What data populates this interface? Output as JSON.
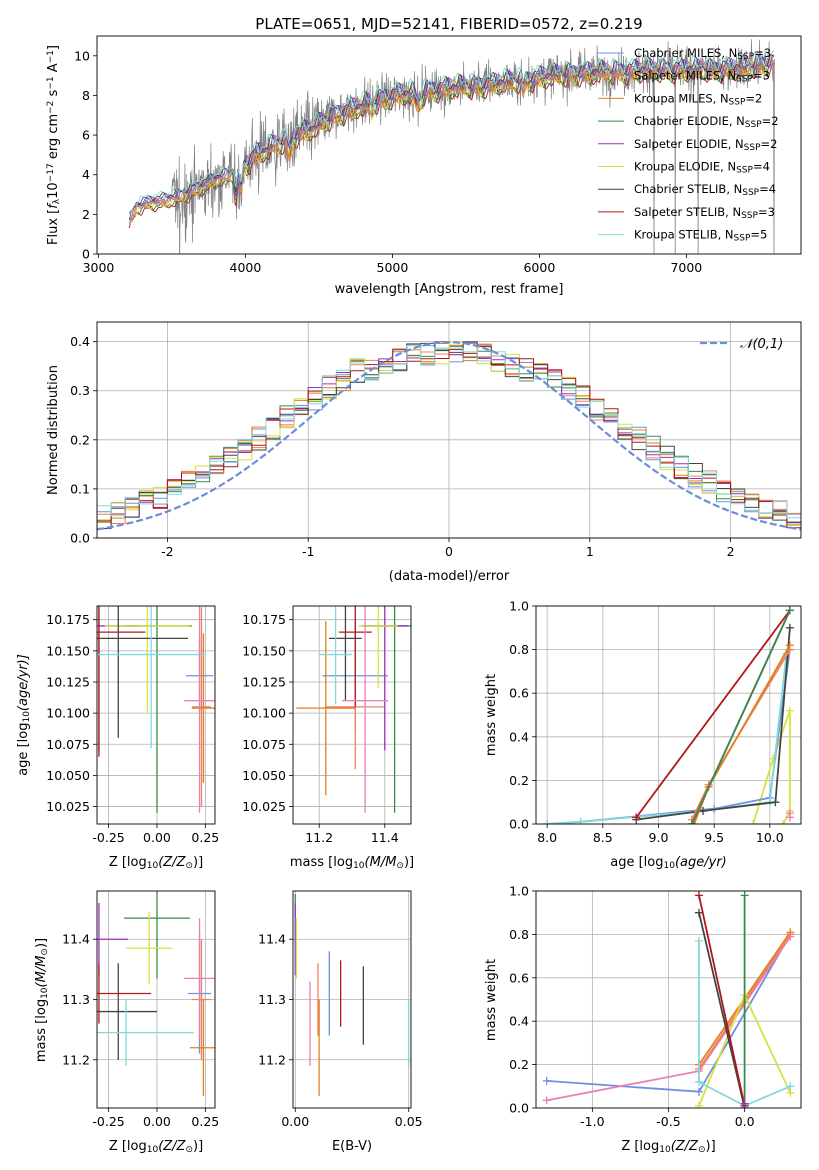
{
  "figure_title": "PLATE=0651, MJD=52141, FIBERID=0572, z=0.219",
  "colors": {
    "Chabrier MILES": "#6f8fe0",
    "Salpeter MILES": "#f08060",
    "Kroupa MILES": "#e0801a",
    "Chabrier ELODIE": "#3a8a4a",
    "Salpeter ELODIE": "#9a30c0",
    "Kroupa ELODIE": "#d8e040",
    "Chabrier STELIB": "#444444",
    "Salpeter STELIB": "#b01818",
    "Kroupa STELIB": "#80dada",
    "pink": "#e880b8",
    "data": "#808080",
    "normal": "#6a8ed8"
  },
  "chart_data": [
    {
      "id": "spectrum",
      "type": "line",
      "title": "PLATE=0651, MJD=52141, FIBERID=0572, z=0.219",
      "xlabel": "wavelength [Angstrom, rest frame]",
      "ylabel_parts": [
        "Flux [",
        "f",
        "λ",
        "10",
        "−17",
        " erg cm",
        "−2",
        " s",
        "−1",
        " A",
        "−1",
        "]"
      ],
      "xlim": [
        2990,
        7780
      ],
      "ylim": [
        0,
        11
      ],
      "xticks": [
        3000,
        4000,
        5000,
        6000,
        7000
      ],
      "yticks": [
        0,
        2,
        4,
        6,
        8,
        10
      ],
      "legend_position": "right",
      "legend": [
        {
          "label": "Chabrier MILES, N",
          "sub": "SSP",
          "n": "=3"
        },
        {
          "label": "Salpeter MILES, N",
          "sub": "SSP",
          "n": "=3"
        },
        {
          "label": "Kroupa MILES, N",
          "sub": "SSP",
          "n": "=2"
        },
        {
          "label": "Chabrier ELODIE, N",
          "sub": "SSP",
          "n": "=2"
        },
        {
          "label": "Salpeter ELODIE, N",
          "sub": "SSP",
          "n": "=2"
        },
        {
          "label": "Kroupa ELODIE, N",
          "sub": "SSP",
          "n": "=4"
        },
        {
          "label": "Chabrier STELIB, N",
          "sub": "SSP",
          "n": "=4"
        },
        {
          "label": "Salpeter STELIB, N",
          "sub": "SSP",
          "n": "=3"
        },
        {
          "label": "Kroupa STELIB, N",
          "sub": "SSP",
          "n": "=5"
        }
      ],
      "model_continuum": [
        [
          3210,
          1.6
        ],
        [
          3260,
          2.4
        ],
        [
          3350,
          2.6
        ],
        [
          3450,
          2.7
        ],
        [
          3550,
          2.9
        ],
        [
          3650,
          3.2
        ],
        [
          3750,
          3.6
        ],
        [
          3850,
          3.9
        ],
        [
          3950,
          4.1
        ],
        [
          4050,
          4.9
        ],
        [
          4150,
          5.3
        ],
        [
          4300,
          5.9
        ],
        [
          4450,
          6.3
        ],
        [
          4600,
          7.0
        ],
        [
          4800,
          7.5
        ],
        [
          5000,
          8.0
        ],
        [
          5200,
          8.2
        ],
        [
          5400,
          8.4
        ],
        [
          5600,
          8.5
        ],
        [
          5800,
          8.7
        ],
        [
          6000,
          8.9
        ],
        [
          6200,
          9.1
        ],
        [
          6500,
          9.2
        ],
        [
          6800,
          9.3
        ],
        [
          7100,
          9.3
        ],
        [
          7400,
          9.4
        ],
        [
          7600,
          9.7
        ]
      ]
    },
    {
      "id": "residuals",
      "type": "bar",
      "xlabel": "(data-model)/error",
      "ylabel": "Normed distribution",
      "xlim": [
        -2.5,
        2.5
      ],
      "ylim": [
        0,
        0.44
      ],
      "xticks": [
        -2,
        -1,
        0,
        1,
        2
      ],
      "yticks": [
        0.0,
        0.1,
        0.2,
        0.3,
        0.4
      ],
      "legend": "𝒩(0,1)",
      "legend_position": "top-right",
      "grid": true,
      "bin_width": 0.1
    },
    {
      "id": "age-vs-Z",
      "type": "scatter",
      "xlabel_parts": [
        "Z [log",
        "10",
        "(Z/Z",
        "⊙",
        ")]"
      ],
      "ylabel_parts": [
        "age  [log",
        "10",
        "(age/yr)]"
      ],
      "xlim": [
        -0.31,
        0.3
      ],
      "ylim": [
        10.011,
        10.186
      ],
      "xticks": [
        -0.25,
        0.0,
        0.25
      ],
      "yticks": [
        10.025,
        10.05,
        10.075,
        10.1,
        10.125,
        10.15,
        10.175
      ],
      "grid": true,
      "points": [
        {
          "color": "Chabrier MILES",
          "x": 0.22,
          "y": 10.13,
          "xerr": 0.07,
          "yerr": 0.03
        },
        {
          "color": "Salpeter MILES",
          "x": 0.23,
          "y": 10.105,
          "xerr": 0.05,
          "yerr": 0.08
        },
        {
          "color": "Kroupa MILES",
          "x": 0.24,
          "y": 10.104,
          "xerr": 0.06,
          "yerr": 0.06
        },
        {
          "color": "Chabrier ELODIE",
          "x": 0.0,
          "y": 10.17,
          "xerr": 0.18,
          "yerr": 0.15
        },
        {
          "color": "Salpeter ELODIE",
          "x": -0.3,
          "y": 10.17,
          "xerr": 0.22,
          "yerr": 0.1
        },
        {
          "color": "Kroupa ELODIE",
          "x": -0.05,
          "y": 10.17,
          "xerr": 0.22,
          "yerr": 0.07
        },
        {
          "color": "Chabrier STELIB",
          "x": -0.2,
          "y": 10.16,
          "xerr": 0.36,
          "yerr": 0.08
        },
        {
          "color": "Salpeter STELIB",
          "x": -0.3,
          "y": 10.165,
          "xerr": 0.24,
          "yerr": 0.1
        },
        {
          "color": "Kroupa STELIB",
          "x": -0.03,
          "y": 10.147,
          "xerr": 0.28,
          "yerr": 0.075
        },
        {
          "color": "pink",
          "x": 0.22,
          "y": 10.11,
          "xerr": 0.08,
          "yerr": 0.09
        }
      ]
    },
    {
      "id": "age-vs-mass",
      "type": "scatter",
      "xlabel_parts": [
        "mass [log",
        "10",
        "(M/M",
        "⊙",
        ")]"
      ],
      "xlim": [
        11.12,
        11.48
      ],
      "ylim": [
        10.011,
        10.186
      ],
      "xticks": [
        11.2,
        11.4
      ],
      "yticks": [
        10.025,
        10.05,
        10.075,
        10.1,
        10.125,
        10.15,
        10.175
      ],
      "grid": true,
      "points": [
        {
          "color": "Chabrier MILES",
          "x": 11.31,
          "y": 10.13,
          "xerr": 0.1,
          "yerr": 0.045
        },
        {
          "color": "Salpeter MILES",
          "x": 11.31,
          "y": 10.105,
          "xerr": 0.09,
          "yerr": 0.05
        },
        {
          "color": "Kroupa MILES",
          "x": 11.22,
          "y": 10.104,
          "xerr": 0.09,
          "yerr": 0.07
        },
        {
          "color": "Chabrier ELODIE",
          "x": 11.43,
          "y": 10.17,
          "xerr": 0.1,
          "yerr": 0.15
        },
        {
          "color": "Salpeter ELODIE",
          "x": 11.4,
          "y": 10.17,
          "xerr": 0.07,
          "yerr": 0.1
        },
        {
          "color": "Kroupa ELODIE",
          "x": 11.38,
          "y": 10.17,
          "xerr": 0.06,
          "yerr": 0.05
        },
        {
          "color": "Chabrier STELIB",
          "x": 11.28,
          "y": 10.16,
          "xerr": 0.05,
          "yerr": 0.05
        },
        {
          "color": "Salpeter STELIB",
          "x": 11.31,
          "y": 10.165,
          "xerr": 0.05,
          "yerr": 0.06
        },
        {
          "color": "Kroupa STELIB",
          "x": 11.25,
          "y": 10.147,
          "xerr": 0.05,
          "yerr": 0.04
        },
        {
          "color": "pink",
          "x": 11.34,
          "y": 10.11,
          "xerr": 0.07,
          "yerr": 0.09
        }
      ]
    },
    {
      "id": "massweight-vs-age",
      "type": "line",
      "xlabel_parts": [
        "age  [log",
        "10",
        "(age/yr)"
      ],
      "ylabel": "mass weight",
      "xlim": [
        7.9,
        10.28
      ],
      "ylim": [
        0,
        1
      ],
      "xticks": [
        8.0,
        8.5,
        9.0,
        9.5,
        10.0
      ],
      "yticks": [
        0.0,
        0.2,
        0.4,
        0.6,
        0.8,
        1.0
      ],
      "grid": true,
      "series": [
        {
          "color": "Kroupa ELODIE",
          "points": [
            [
              9.85,
              0.0
            ],
            [
              10.03,
              0.3
            ],
            [
              10.18,
              0.52
            ],
            [
              10.18,
              0.06
            ],
            [
              10.12,
              0.0
            ]
          ]
        },
        {
          "color": "Chabrier MILES",
          "points": [
            [
              8.0,
              0.0
            ],
            [
              8.3,
              0.01
            ],
            [
              9.5,
              0.07
            ],
            [
              10.0,
              0.12
            ],
            [
              10.18,
              0.8
            ]
          ]
        },
        {
          "color": "Kroupa STELIB",
          "points": [
            [
              8.0,
              0.0
            ],
            [
              8.3,
              0.01
            ],
            [
              9.4,
              0.06
            ],
            [
              10.0,
              0.1
            ],
            [
              10.15,
              0.78
            ]
          ]
        },
        {
          "color": "Chabrier STELIB",
          "points": [
            [
              8.8,
              0.02
            ],
            [
              9.4,
              0.06
            ],
            [
              10.05,
              0.1
            ],
            [
              10.18,
              0.9
            ]
          ]
        },
        {
          "color": "Salpeter STELIB",
          "points": [
            [
              8.8,
              0.03
            ],
            [
              10.18,
              0.98
            ]
          ]
        },
        {
          "color": "Salpeter MILES",
          "points": [
            [
              9.3,
              0.02
            ],
            [
              9.45,
              0.18
            ],
            [
              10.18,
              0.8
            ]
          ]
        },
        {
          "color": "Kroupa MILES",
          "points": [
            [
              9.32,
              0.0
            ],
            [
              9.45,
              0.17
            ],
            [
              10.18,
              0.82
            ]
          ]
        },
        {
          "color": "Salpeter ELODIE",
          "points": [
            [
              9.3,
              0.0
            ],
            [
              10.18,
              0.98
            ]
          ]
        },
        {
          "color": "Chabrier ELODIE",
          "points": [
            [
              9.3,
              0.0
            ],
            [
              10.18,
              0.98
            ]
          ]
        },
        {
          "color": "pink",
          "points": [
            [
              10.18,
              0.03
            ],
            [
              10.18,
              0.05
            ]
          ]
        }
      ]
    },
    {
      "id": "mass-vs-Z",
      "type": "scatter",
      "xlabel_parts": [
        "Z [log",
        "10",
        "(Z/Z",
        "⊙",
        ")]"
      ],
      "ylabel_parts": [
        "mass [log",
        "10",
        "(M/M",
        "⊙",
        ")]"
      ],
      "xlim": [
        -0.31,
        0.3
      ],
      "ylim": [
        11.12,
        11.48
      ],
      "xticks": [
        -0.25,
        0.0,
        0.25
      ],
      "yticks": [
        11.2,
        11.3,
        11.4
      ],
      "grid": true,
      "points": [
        {
          "color": "Chabrier MILES",
          "x": 0.22,
          "y": 11.31,
          "xerr": 0.06,
          "yerr": 0.1
        },
        {
          "color": "Salpeter MILES",
          "x": 0.23,
          "y": 11.3,
          "xerr": 0.05,
          "yerr": 0.1
        },
        {
          "color": "Kroupa MILES",
          "x": 0.24,
          "y": 11.22,
          "xerr": 0.07,
          "yerr": 0.08
        },
        {
          "color": "Chabrier ELODIE",
          "x": 0.0,
          "y": 11.435,
          "xerr": 0.17,
          "yerr": 0.1
        },
        {
          "color": "Salpeter ELODIE",
          "x": -0.3,
          "y": 11.4,
          "xerr": 0.15,
          "yerr": 0.06
        },
        {
          "color": "Kroupa ELODIE",
          "x": -0.04,
          "y": 11.385,
          "xerr": 0.12,
          "yerr": 0.06
        },
        {
          "color": "Chabrier STELIB",
          "x": -0.2,
          "y": 11.28,
          "xerr": 0.2,
          "yerr": 0.08
        },
        {
          "color": "Salpeter STELIB",
          "x": -0.3,
          "y": 11.31,
          "xerr": 0.27,
          "yerr": 0.05
        },
        {
          "color": "Kroupa STELIB",
          "x": -0.16,
          "y": 11.245,
          "xerr": 0.35,
          "yerr": 0.055
        },
        {
          "color": "pink",
          "x": 0.22,
          "y": 11.335,
          "xerr": 0.08,
          "yerr": 0.1
        }
      ]
    },
    {
      "id": "mass-vs-EBV",
      "type": "scatter",
      "xlabel": "E(B-V)",
      "xlim": [
        -0.001,
        0.051
      ],
      "ylim": [
        11.12,
        11.48
      ],
      "xticks": [
        0.0,
        0.05
      ],
      "yticks": [
        11.2,
        11.3,
        11.4
      ],
      "grid": true,
      "points": [
        {
          "color": "Chabrier MILES",
          "x": 0.015,
          "y": 11.31,
          "yerr": 0.07
        },
        {
          "color": "Salpeter MILES",
          "x": 0.01,
          "y": 11.3,
          "yerr": 0.06
        },
        {
          "color": "Kroupa MILES",
          "x": 0.0105,
          "y": 11.22,
          "yerr": 0.08
        },
        {
          "color": "Chabrier ELODIE",
          "x": 0.0,
          "y": 11.435,
          "yerr": 0.04
        },
        {
          "color": "Salpeter ELODIE",
          "x": 0.0,
          "y": 11.4,
          "yerr": 0.06
        },
        {
          "color": "Kroupa ELODIE",
          "x": 0.0005,
          "y": 11.385,
          "yerr": 0.05
        },
        {
          "color": "Chabrier STELIB",
          "x": 0.03,
          "y": 11.29,
          "yerr": 0.065
        },
        {
          "color": "Salpeter STELIB",
          "x": 0.02,
          "y": 11.31,
          "yerr": 0.055
        },
        {
          "color": "Kroupa STELIB",
          "x": 0.05,
          "y": 11.245,
          "yerr": 0.055
        },
        {
          "color": "pink",
          "x": 0.0065,
          "y": 11.26,
          "yerr": 0.07
        }
      ]
    },
    {
      "id": "massweight-vs-Z",
      "type": "line",
      "xlabel_parts": [
        "Z [log",
        "10",
        "(Z/Z",
        "⊙",
        ")]"
      ],
      "ylabel": "mass weight",
      "xlim": [
        -1.37,
        0.37
      ],
      "ylim": [
        0,
        1
      ],
      "xticks": [
        -1.0,
        -0.5,
        0.0
      ],
      "yticks": [
        0.0,
        0.2,
        0.4,
        0.6,
        0.8,
        1.0
      ],
      "grid": true,
      "series": [
        {
          "color": "Chabrier MILES",
          "points": [
            [
              -1.3,
              0.125
            ],
            [
              -0.3,
              0.075
            ],
            [
              0.3,
              0.8
            ]
          ]
        },
        {
          "color": "pink",
          "points": [
            [
              -1.3,
              0.035
            ],
            [
              -0.3,
              0.17
            ],
            [
              0.3,
              0.79
            ]
          ]
        },
        {
          "color": "Kroupa MILES",
          "points": [
            [
              -0.3,
              0.2
            ],
            [
              0.3,
              0.81
            ]
          ]
        },
        {
          "color": "Salpeter MILES",
          "points": [
            [
              -0.3,
              0.18
            ],
            [
              0.3,
              0.8
            ]
          ]
        },
        {
          "color": "Kroupa ELODIE",
          "points": [
            [
              -0.3,
              0.01
            ],
            [
              0.0,
              0.52
            ],
            [
              0.3,
              0.07
            ]
          ]
        },
        {
          "color": "Kroupa STELIB",
          "points": [
            [
              -0.3,
              0.77
            ],
            [
              -0.3,
              0.12
            ],
            [
              0.0,
              0.01
            ],
            [
              0.3,
              0.1
            ]
          ]
        },
        {
          "color": "Chabrier STELIB",
          "points": [
            [
              -0.3,
              0.9
            ],
            [
              0.0,
              0.0
            ]
          ]
        },
        {
          "color": "Salpeter STELIB",
          "points": [
            [
              -0.3,
              0.98
            ],
            [
              0.0,
              0.01
            ]
          ]
        },
        {
          "color": "Chabrier ELODIE",
          "points": [
            [
              0.0,
              0.98
            ],
            [
              0.0,
              0.0
            ]
          ]
        },
        {
          "color": "Salpeter ELODIE",
          "points": [
            [
              0.0,
              0.0
            ],
            [
              0.0,
              0.02
            ]
          ]
        }
      ]
    }
  ]
}
